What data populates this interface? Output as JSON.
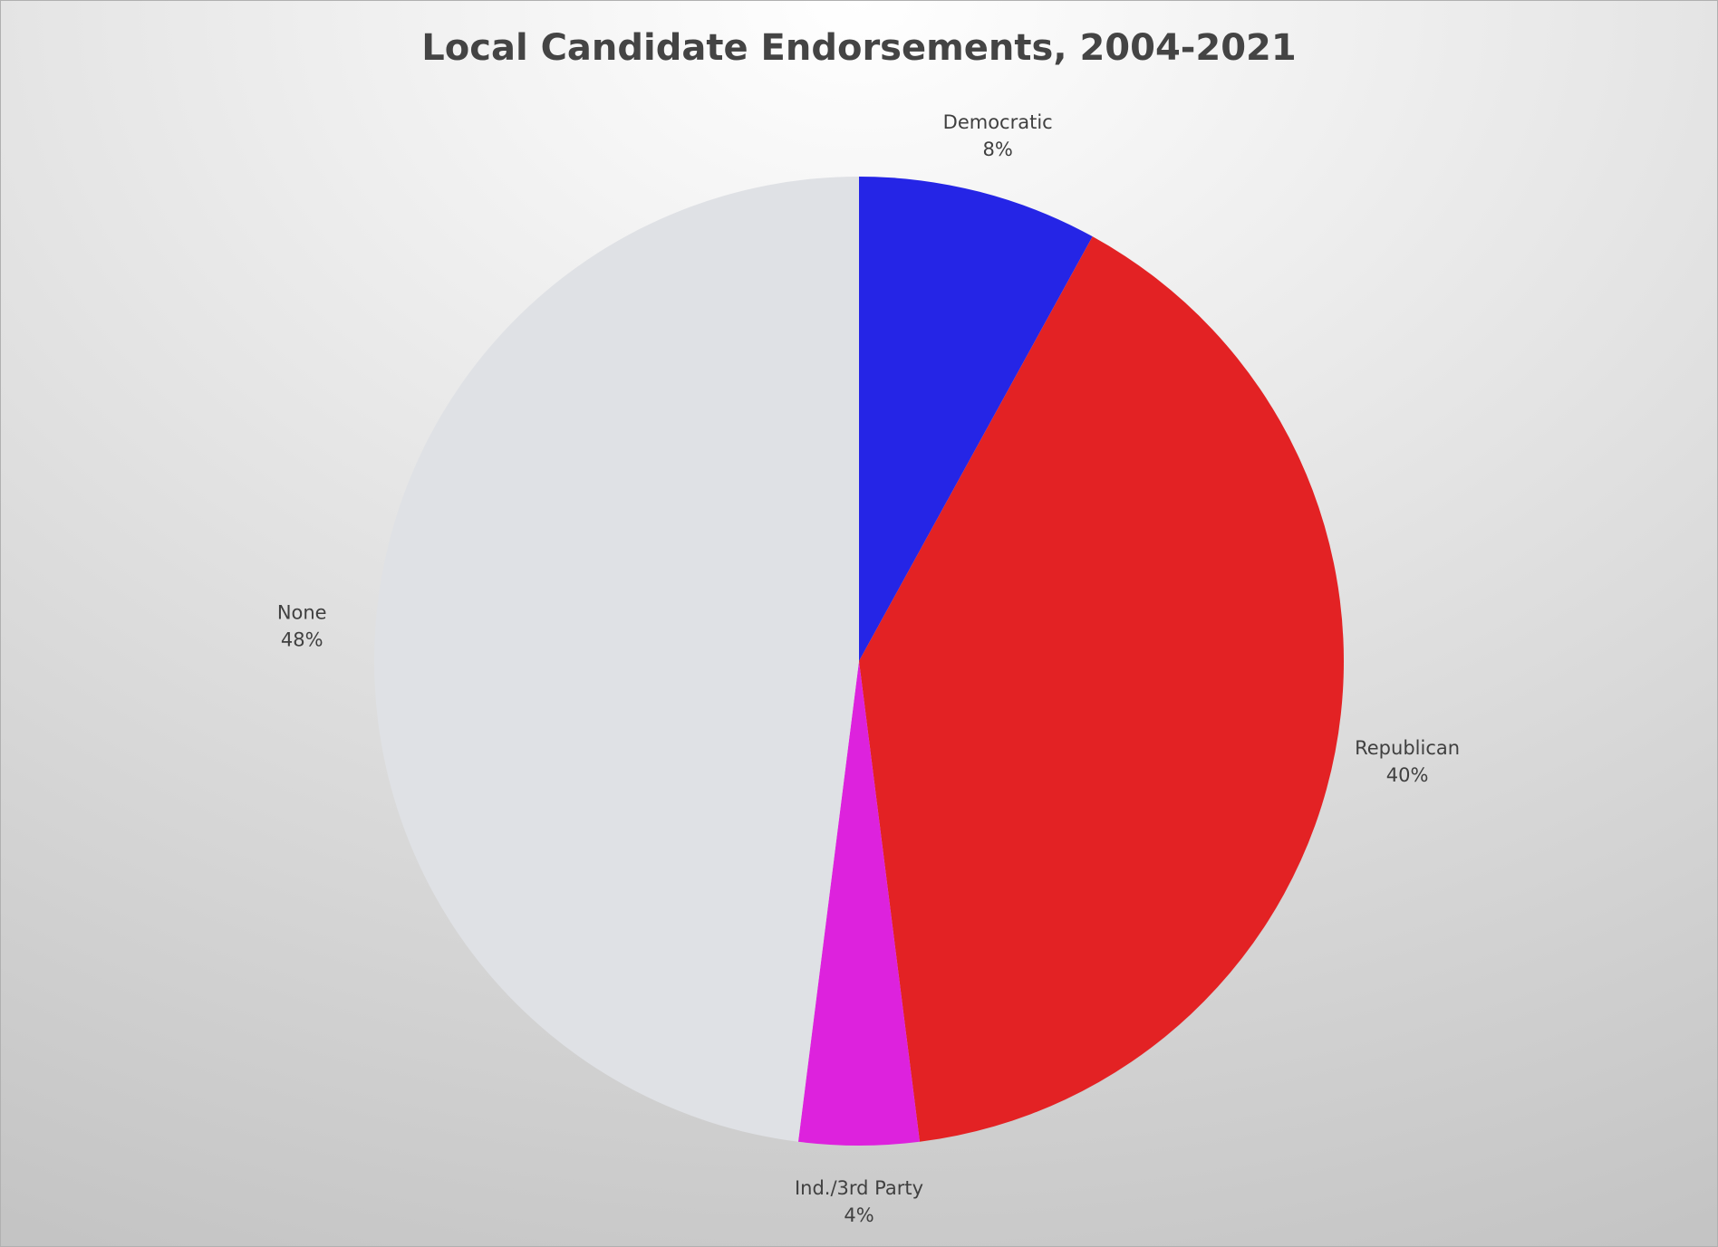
{
  "chart_data": {
    "type": "pie",
    "title": "Local Candidate Endorsements, 2004-2021",
    "categories": [
      "Democratic",
      "Republican",
      "Ind./3rd Party",
      "None"
    ],
    "values": [
      8,
      40,
      4,
      48
    ],
    "value_labels": [
      "8%",
      "40%",
      "4%",
      "48%"
    ],
    "colors": [
      "#2525e6",
      "#e32224",
      "#dd22dd",
      "#dfe1e5"
    ]
  }
}
